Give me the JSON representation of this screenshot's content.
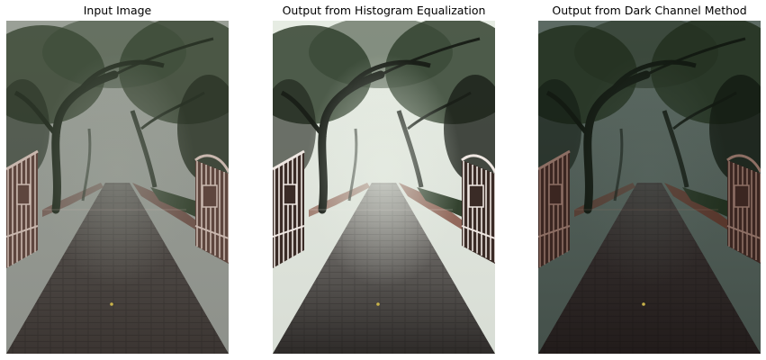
{
  "figure": {
    "panels": [
      {
        "title": "Input Image",
        "variant": "input"
      },
      {
        "title": "Output from Histogram Equalization",
        "variant": "histeq"
      },
      {
        "title": "Output from Dark Channel Method",
        "variant": "darkchannel"
      }
    ]
  },
  "palettes": {
    "input": {
      "sky": "#9aa097",
      "haze": "#8e918b",
      "road": "#3b3532",
      "roadFar": "#5a5652",
      "tree": "#2a3326",
      "foliage": "#3d4a37",
      "gate": "#c9b7ae",
      "gateShadow": "#5e463e",
      "wall": "#6e5148",
      "hazeOpacity": 0.55
    },
    "histeq": {
      "sky": "#e6ece3",
      "haze": "#d8ddd5",
      "road": "#2e2b29",
      "roadFar": "#8b8884",
      "tree": "#1a1f18",
      "foliage": "#33422f",
      "gate": "#efe7e2",
      "gateShadow": "#3a2b26",
      "wall": "#8a5a4c",
      "hazeOpacity": 0.7
    },
    "darkchannel": {
      "sky": "#5c6a63",
      "haze": "#44504a",
      "road": "#221c1b",
      "roadFar": "#3a3433",
      "tree": "#131a12",
      "foliage": "#22301f",
      "gate": "#8d6f64",
      "gateShadow": "#3b2621",
      "wall": "#5a3328",
      "hazeOpacity": 0.35
    }
  }
}
